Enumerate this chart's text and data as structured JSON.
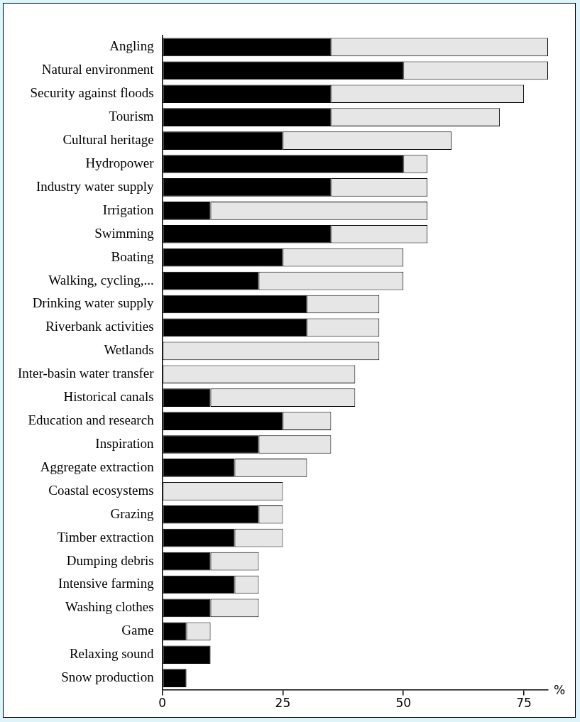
{
  "chart_data": {
    "type": "bar",
    "orientation": "horizontal",
    "stacked": true,
    "xlabel": "%",
    "categories": [
      "Angling",
      "Natural environment",
      "Security against floods",
      "Tourism",
      "Cultural heritage",
      "Hydropower",
      "Industry water supply",
      "Irrigation",
      "Swimming",
      "Boating",
      "Walking, cycling,...",
      "Drinking water supply",
      "Riverbank activities",
      "Wetlands",
      "Inter-basin water transfer",
      "Historical canals",
      "Education and research",
      "Inspiration",
      "Aggregate extraction",
      "Coastal ecosystems",
      "Grazing",
      "Timber extraction",
      "Dumping debris",
      "Intensive farming",
      "Washing clothes",
      "Game",
      "Relaxing sound",
      "Snow production"
    ],
    "series": [
      {
        "color": "#000000",
        "values": [
          35,
          50,
          35,
          35,
          25,
          50,
          35,
          10,
          35,
          25,
          20,
          30,
          30,
          0,
          0,
          10,
          25,
          20,
          15,
          0,
          20,
          15,
          10,
          15,
          10,
          5,
          10,
          5
        ]
      },
      {
        "color": "#e6e6e6",
        "values": [
          45,
          30,
          40,
          35,
          35,
          5,
          20,
          45,
          20,
          25,
          30,
          15,
          15,
          45,
          40,
          30,
          10,
          15,
          15,
          25,
          5,
          10,
          10,
          5,
          10,
          5,
          0,
          0
        ]
      }
    ],
    "xlim": [
      0,
      80
    ],
    "xticks": [
      0,
      25,
      50,
      75
    ],
    "grid": false,
    "legend": false
  }
}
